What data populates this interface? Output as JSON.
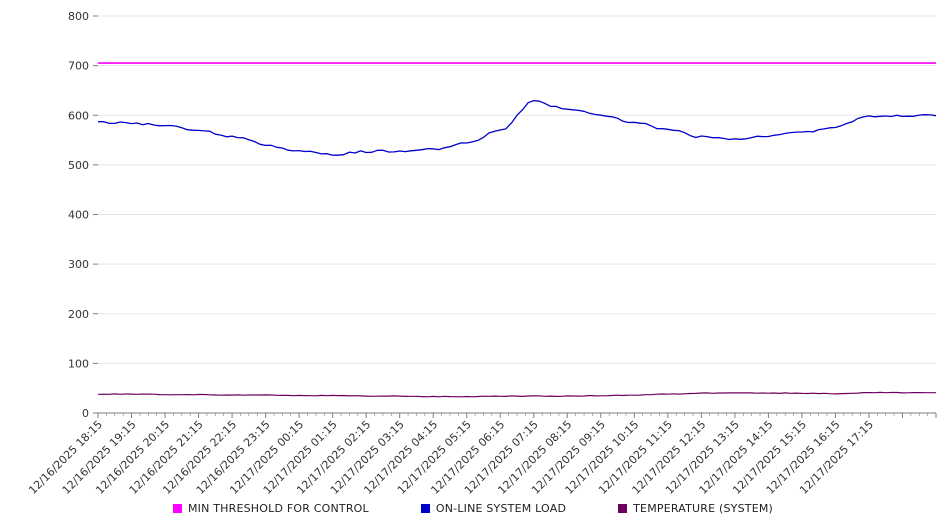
{
  "chart_data": {
    "type": "line",
    "title": "",
    "xlabel": "",
    "ylabel": "",
    "ylim": [
      0,
      800
    ],
    "y_ticks": [
      0,
      100,
      200,
      300,
      400,
      500,
      600,
      700,
      800
    ],
    "grid": true,
    "legend_position": "bottom",
    "categories": [
      "12/16/2025 18:15",
      "12/16/2025 19:15",
      "12/16/2025 20:15",
      "12/16/2025 21:15",
      "12/16/2025 22:15",
      "12/16/2025 23:15",
      "12/17/2025 00:15",
      "12/17/2025 01:15",
      "12/17/2025 02:15",
      "12/17/2025 03:15",
      "12/17/2025 04:15",
      "12/17/2025 05:15",
      "12/17/2025 06:15",
      "12/17/2025 07:15",
      "12/17/2025 08:15",
      "12/17/2025 09:15",
      "12/17/2025 10:15",
      "12/17/2025 11:15",
      "12/17/2025 12:15",
      "12/17/2025 13:15",
      "12/17/2025 14:15",
      "12/17/2025 15:15",
      "12/17/2025 16:15",
      "12/17/2025 17:15"
    ],
    "series": [
      {
        "name": "MIN THRESHOLD FOR CONTROL",
        "color": "#ff00ff",
        "width": 1.6,
        "jitter": 0,
        "values": [
          705,
          705,
          705,
          705,
          705,
          705,
          705,
          705,
          705,
          705,
          705,
          705,
          705,
          705,
          705,
          705,
          705,
          705,
          705,
          705,
          705,
          705,
          705,
          705
        ]
      },
      {
        "name": "ON-LINE SYSTEM LOAD",
        "color": "#0000cd",
        "width": 1.3,
        "jitter": 2.2,
        "values": [
          585,
          584,
          580,
          570,
          557,
          541,
          527,
          521,
          527,
          528,
          532,
          543,
          570,
          628,
          612,
          600,
          586,
          571,
          556,
          551,
          558,
          566,
          576,
          599
        ]
      },
      {
        "name": "TEMPERATURE (SYSTEM)",
        "color": "#70005f",
        "width": 1.2,
        "jitter": 0.6,
        "values": [
          38,
          38,
          37,
          37,
          36,
          36,
          35,
          35,
          34,
          34,
          33,
          33,
          34,
          34,
          34,
          35,
          36,
          38,
          40,
          41,
          40,
          40,
          39,
          41
        ]
      }
    ]
  }
}
